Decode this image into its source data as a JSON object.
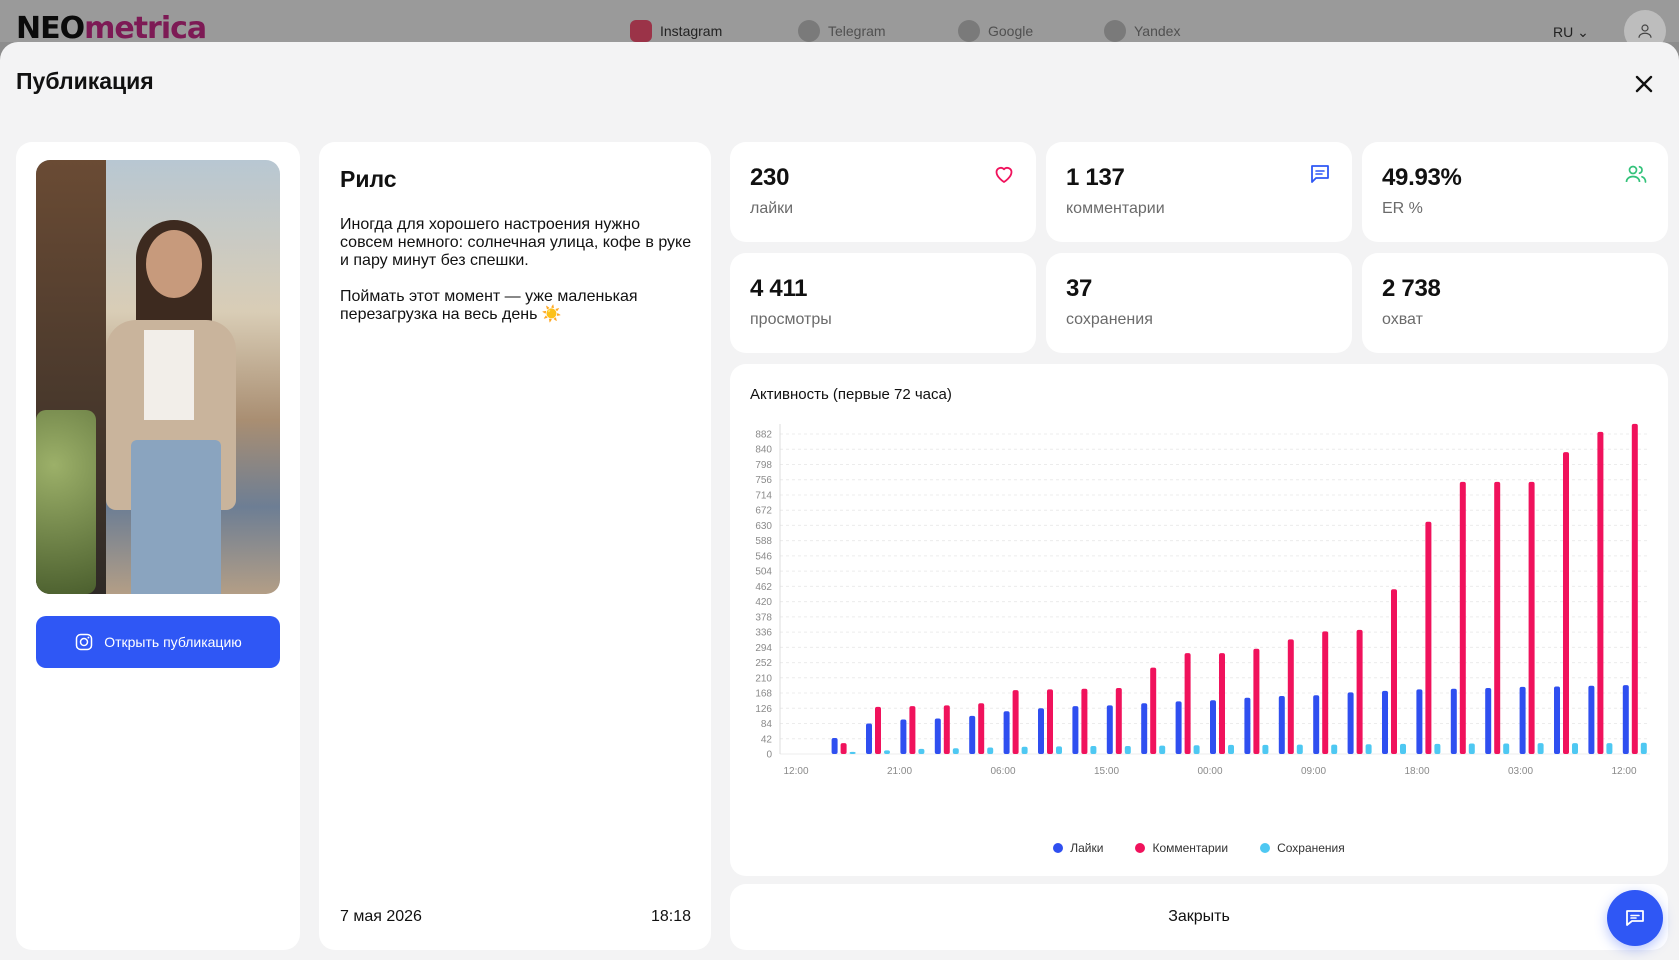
{
  "topbar": {
    "logo_part1": "NEO",
    "logo_part2": "metrica",
    "nav": [
      {
        "label": "Instagram",
        "icon": "instagram-icon"
      },
      {
        "label": "Telegram",
        "icon": "telegram-icon"
      },
      {
        "label": "Google",
        "icon": "google-icon"
      },
      {
        "label": "Yandex",
        "icon": "yandex-icon"
      }
    ],
    "language": "RU"
  },
  "modal": {
    "title": "Публикация",
    "close_button": "Закрыть"
  },
  "media": {
    "open_button": "Открыть публикацию"
  },
  "post": {
    "type": "Рилс",
    "caption_p1": "Иногда для хорошего настроения нужно совсем немного: солнечная улица, кофе в руке и пару минут без спешки.",
    "caption_p2": "Поймать этот момент — уже маленькая перезагрузка на весь день ☀️",
    "date": "7 мая 2026",
    "time": "18:18"
  },
  "stats": [
    {
      "value": "230",
      "label": "лайки",
      "icon": "heart-icon"
    },
    {
      "value": "1 137",
      "label": "комментарии",
      "icon": "comment-icon"
    },
    {
      "value": "49.93%",
      "label": "ER %",
      "icon": "users-icon"
    },
    {
      "value": "4 411",
      "label": "просмотры"
    },
    {
      "value": "37",
      "label": "сохранения"
    },
    {
      "value": "2 738",
      "label": "охват"
    }
  ],
  "colors": {
    "accent": "#2f57f5",
    "likes": "#2f4ff0",
    "comments": "#f0125c",
    "saves": "#4ec8f2",
    "heart": "#f0125c",
    "users": "#33c27a"
  },
  "chart_data": {
    "type": "bar",
    "title": "Активность (первые 72 часа)",
    "x_tick_labels": [
      "12:00",
      "21:00",
      "06:00",
      "15:00",
      "00:00",
      "09:00",
      "18:00",
      "03:00",
      "12:00"
    ],
    "y_ticks": [
      0,
      42,
      84,
      126,
      168,
      210,
      252,
      294,
      336,
      378,
      420,
      462,
      504,
      546,
      588,
      630,
      672,
      714,
      756,
      798,
      840,
      882
    ],
    "ylim": [
      0,
      882
    ],
    "grid": true,
    "legend_position": "bottom",
    "series": [
      {
        "name": "Лайки",
        "color": "#2f4ff0",
        "values": [
          0,
          44,
          84,
          95,
          98,
          105,
          118,
          126,
          132,
          134,
          140,
          145,
          148,
          155,
          160,
          162,
          170,
          174,
          178,
          180,
          182,
          185,
          186,
          188,
          190
        ]
      },
      {
        "name": "Комментарии",
        "color": "#f0125c",
        "values": [
          0,
          30,
          130,
          132,
          134,
          140,
          176,
          178,
          180,
          182,
          238,
          278,
          278,
          290,
          316,
          338,
          342,
          454,
          640,
          750,
          750,
          750,
          832,
          888,
          910
        ]
      },
      {
        "name": "Сохранения",
        "color": "#4ec8f2",
        "values": [
          0,
          6,
          10,
          14,
          16,
          18,
          20,
          21,
          22,
          22,
          23,
          24,
          25,
          25,
          26,
          26,
          27,
          28,
          28,
          29,
          29,
          30,
          30,
          30,
          31
        ]
      }
    ]
  }
}
